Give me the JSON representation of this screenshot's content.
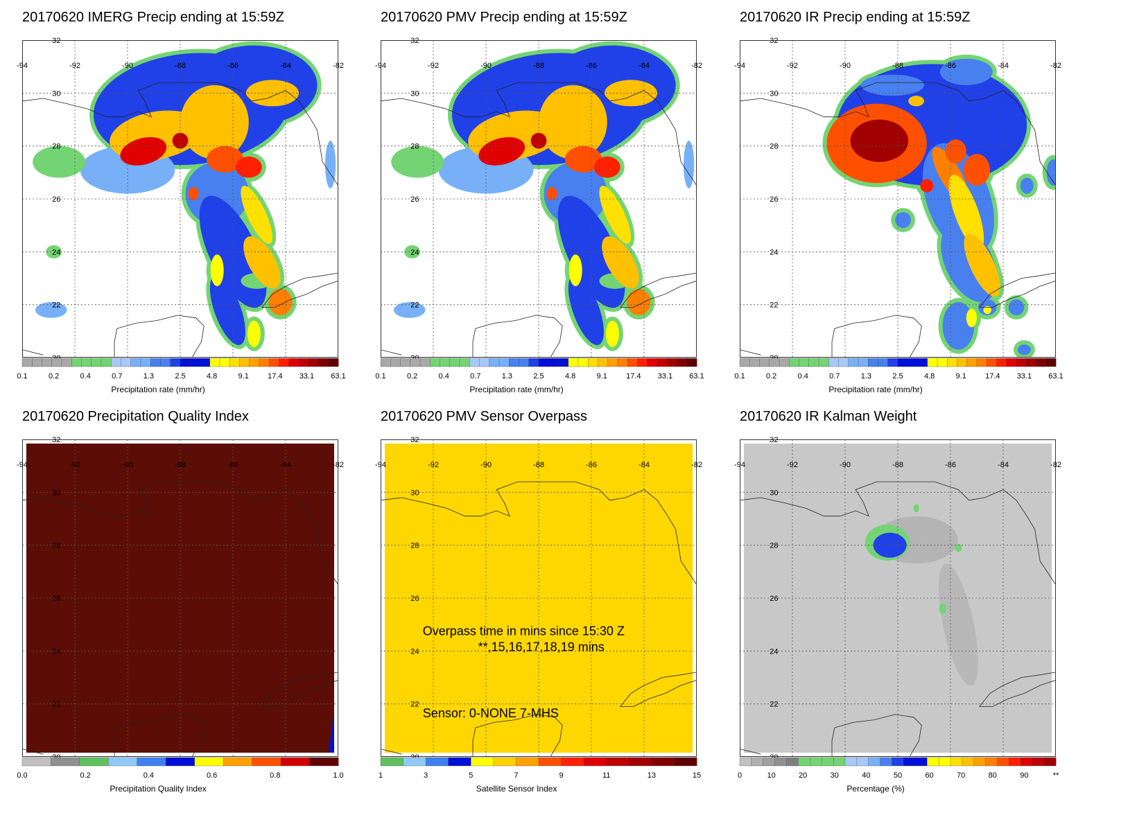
{
  "panels": [
    {
      "id": "imerg",
      "title": "20170620 IMERG Precip ending at 15:59Z",
      "type": "precip",
      "colorbar": {
        "label": "Precipitation rate (mm/hr)",
        "ticks": [
          "0.1",
          "0.2",
          "0.4",
          "0.7",
          "1.3",
          "2.5",
          "4.8",
          "9.1",
          "17.4",
          "33.1",
          "63.1"
        ]
      }
    },
    {
      "id": "pmv",
      "title": "20170620 PMV Precip ending at 15:59Z",
      "type": "precip",
      "colorbar": {
        "label": "Precipitation rate (mm/hr)",
        "ticks": [
          "0.1",
          "0.2",
          "0.4",
          "0.7",
          "1.3",
          "2.5",
          "4.8",
          "9.1",
          "17.4",
          "33.1",
          "63.1"
        ]
      }
    },
    {
      "id": "ir",
      "title": "20170620 IR Precip ending at 15:59Z",
      "type": "ir",
      "colorbar": {
        "label": "Precipitation rate (mm/hr)",
        "ticks": [
          "0.1",
          "0.2",
          "0.4",
          "0.7",
          "1.3",
          "2.5",
          "4.8",
          "9.1",
          "17.4",
          "33.1",
          "63.1"
        ]
      }
    },
    {
      "id": "pqi",
      "title": "20170620 Precipitation Quality Index",
      "type": "pqi",
      "colorbar": {
        "label": "Precipitation Quality Index",
        "ticks": [
          "0.0",
          "0.2",
          "0.4",
          "0.6",
          "0.8",
          "1.0"
        ]
      }
    },
    {
      "id": "sensor",
      "title": "20170620 PMV Sensor Overpass",
      "type": "sensor",
      "colorbar": {
        "label": "Satellite Sensor Index",
        "ticks": [
          "1",
          "3",
          "5",
          "7",
          "9",
          "11",
          "13",
          "15"
        ]
      },
      "annotation": {
        "line1": "Overpass time in mins since 15:30 Z",
        "line2": "**,15,16,17,18,19 mins",
        "line3": "Sensor:   0-NONE  7-MHS"
      }
    },
    {
      "id": "kalman",
      "title": "20170620 IR Kalman Weight",
      "type": "kalman",
      "colorbar": {
        "label": "Percentage (%)",
        "ticks": [
          "0",
          "10",
          "20",
          "30",
          "40",
          "50",
          "60",
          "70",
          "80",
          "90",
          "**"
        ]
      }
    }
  ],
  "map": {
    "lon_labels": [
      "-94",
      "-92",
      "-90",
      "-88",
      "-86",
      "-84",
      "-82"
    ],
    "lat_labels": [
      "32",
      "30",
      "28",
      "26",
      "24",
      "22",
      "20"
    ]
  },
  "colors": {
    "precip_scale": [
      "#a8a8a8",
      "#a8a8a8",
      "#a8a8a8",
      "#a8a8a8",
      "#a8a8a8",
      "#74d474",
      "#74d474",
      "#74d474",
      "#74d474",
      "#a8c8f8",
      "#a8c8f8",
      "#78b0f8",
      "#78b0f8",
      "#4880f0",
      "#4880f0",
      "#2040e8",
      "#0010d8",
      "#0010d8",
      "#0010d8",
      "#ffff00",
      "#ffff00",
      "#ffe000",
      "#ffc000",
      "#ffa000",
      "#ff8000",
      "#ff5000",
      "#ff2000",
      "#e00000",
      "#c00000",
      "#a00000",
      "#800000",
      "#600000"
    ],
    "pqi_scale": [
      "#c0c0c0",
      "#909090",
      "#60c060",
      "#90c8f8",
      "#4080f0",
      "#0010d8",
      "#ffff00",
      "#ffa000",
      "#ff5000",
      "#d00000",
      "#600000"
    ],
    "sensor_scale": [
      "#60c060",
      "#90c8f8",
      "#4080f0",
      "#0010d8",
      "#ffff00",
      "#ffd000",
      "#ffa000",
      "#ff5000",
      "#ff2000",
      "#e00000",
      "#c00000",
      "#a00000",
      "#800000",
      "#600000"
    ],
    "kalman_scale": [
      "#c0c0c0",
      "#b0b0b0",
      "#a0a0a0",
      "#909090",
      "#808080",
      "#74d474",
      "#74d474",
      "#74d474",
      "#74d474",
      "#a8c8f8",
      "#a8c8f8",
      "#78b0f8",
      "#4880f0",
      "#2040e8",
      "#0010d8",
      "#0010d8",
      "#ffff00",
      "#ffff00",
      "#ffe000",
      "#ffc000",
      "#ffa000",
      "#ff8000",
      "#ff5000",
      "#ff2000",
      "#e00000",
      "#c00000",
      "#a00000"
    ],
    "pqi_fill": "#5c0e06",
    "sensor_fill": "#ffd700",
    "kalman_fill": "#c8c8c8"
  }
}
